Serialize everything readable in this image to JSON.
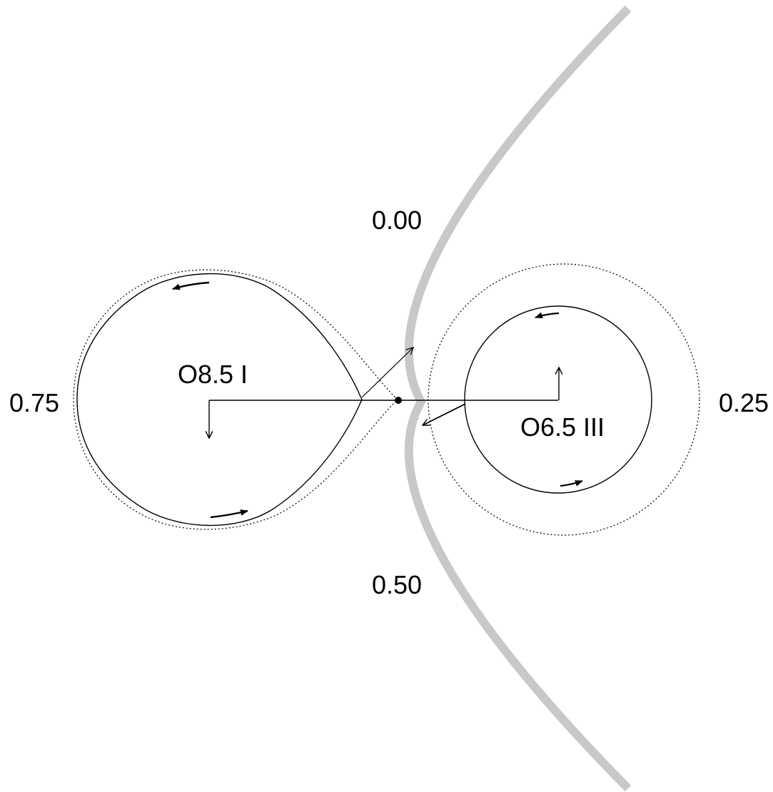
{
  "labels": {
    "phase_top": "0.00",
    "phase_right": "0.25",
    "phase_bottom": "0.50",
    "phase_left": "0.75",
    "primary_star": "O8.5 I",
    "secondary_star": "O6.5 III"
  },
  "colors": {
    "line": "#000000",
    "shock_cone": "#c8c8c8",
    "background": "#ffffff"
  }
}
